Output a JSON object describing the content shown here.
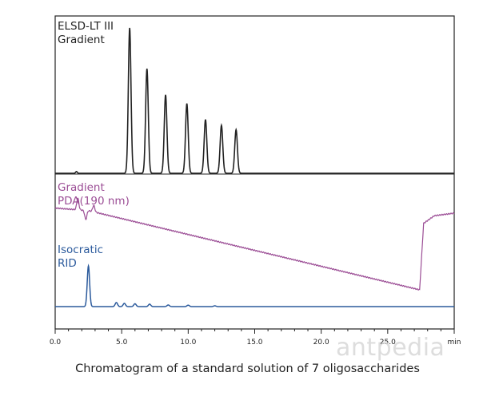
{
  "chart_data": {
    "type": "line",
    "title": "Chromatogram of a standard solution of 7 oligosaccharides",
    "x_unit": "min",
    "xlim": [
      0,
      30
    ],
    "x_ticks": [
      "0.0",
      "5.0",
      "10.0",
      "15.0",
      "20.0",
      "25.0",
      "min"
    ],
    "x_tick_values": [
      0,
      5,
      10,
      15,
      20,
      25,
      30
    ],
    "series": [
      {
        "name": "ELSD-LT III Gradient",
        "label_lines": [
          "ELSD-LT III",
          "Gradient"
        ],
        "color": "#222222",
        "baseline": 0,
        "peaks": [
          {
            "rt": 1.6,
            "height": 0.012,
            "width": 0.06
          },
          {
            "rt": 5.6,
            "height": 1.0,
            "width": 0.1
          },
          {
            "rt": 6.9,
            "height": 0.72,
            "width": 0.1
          },
          {
            "rt": 8.3,
            "height": 0.54,
            "width": 0.1
          },
          {
            "rt": 9.9,
            "height": 0.48,
            "width": 0.1
          },
          {
            "rt": 11.3,
            "height": 0.37,
            "width": 0.1
          },
          {
            "rt": 12.5,
            "height": 0.33,
            "width": 0.1
          },
          {
            "rt": 13.6,
            "height": 0.3,
            "width": 0.1
          }
        ]
      },
      {
        "name": "Gradient PDA(190 nm)",
        "label_lines": [
          "Gradient",
          "PDA(190 nm)"
        ],
        "color": "#9b4d95",
        "drift": [
          [
            0,
            0.64
          ],
          [
            2.5,
            0.62
          ],
          [
            27.4,
            0.0
          ],
          [
            27.7,
            0.52
          ],
          [
            28.5,
            0.58
          ],
          [
            30,
            0.6
          ]
        ],
        "disturbances": [
          {
            "rt": 1.7,
            "amp": 0.09
          },
          {
            "rt": 2.3,
            "amp": -0.07
          },
          {
            "rt": 2.9,
            "amp": 0.05
          }
        ]
      },
      {
        "name": "Isocratic RID",
        "label_lines": [
          "Isocratic",
          "RID"
        ],
        "color": "#2b5a9c",
        "baseline": 0,
        "peaks": [
          {
            "rt": 2.5,
            "height": 1.0,
            "width": 0.09
          },
          {
            "rt": 4.6,
            "height": 0.1,
            "width": 0.09
          },
          {
            "rt": 5.2,
            "height": 0.08,
            "width": 0.09
          },
          {
            "rt": 6.0,
            "height": 0.07,
            "width": 0.09
          },
          {
            "rt": 7.1,
            "height": 0.06,
            "width": 0.09
          },
          {
            "rt": 8.5,
            "height": 0.04,
            "width": 0.09
          },
          {
            "rt": 10.0,
            "height": 0.035,
            "width": 0.09
          },
          {
            "rt": 12.0,
            "height": 0.02,
            "width": 0.09
          }
        ]
      }
    ]
  },
  "caption": "Chromatogram of a standard solution of 7 oligosaccharides",
  "watermark": "antpedia"
}
